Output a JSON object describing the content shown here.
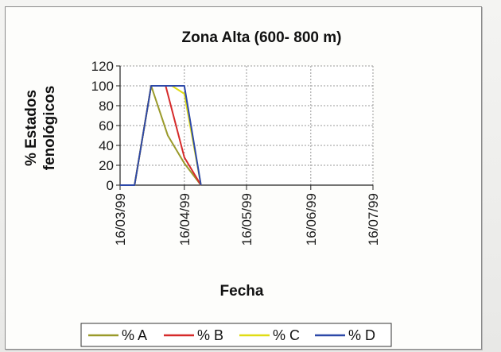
{
  "chart_data": {
    "type": "line",
    "title": "Zona  Alta (600- 800 m)",
    "xlabel": "Fecha",
    "ylabel": "% Estados fenológicos",
    "ylabel_lines": [
      "% Estados",
      "fenológicos"
    ],
    "ylim": [
      0,
      120
    ],
    "yticks": [
      "0",
      "20",
      "40",
      "60",
      "80",
      "100",
      "120"
    ],
    "xticks": [
      "16/03/99",
      "16/04/99",
      "16/05/99",
      "16/06/99",
      "16/07/99"
    ],
    "grid": true,
    "legend_position": "bottom",
    "series": [
      {
        "name": "% A",
        "color": "#9a9a2a",
        "x": [
          "16/03/99",
          "23/03/99",
          "31/03/99",
          "08/04/99",
          "16/04/99",
          "24/04/99"
        ],
        "values": [
          0,
          0,
          100,
          50,
          22,
          0
        ]
      },
      {
        "name": "% B",
        "color": "#d62a2a",
        "x": [
          "16/03/99",
          "23/03/99",
          "31/03/99",
          "07/04/99",
          "16/04/99",
          "24/04/99"
        ],
        "values": [
          0,
          0,
          100,
          100,
          28,
          0
        ]
      },
      {
        "name": "% C",
        "color": "#e0dc14",
        "x": [
          "16/03/99",
          "23/03/99",
          "31/03/99",
          "10/04/99",
          "16/04/99",
          "24/04/99"
        ],
        "values": [
          0,
          0,
          100,
          100,
          92,
          0
        ]
      },
      {
        "name": "% D",
        "color": "#2c48a8",
        "x": [
          "16/03/99",
          "23/03/99",
          "31/03/99",
          "16/04/99",
          "24/04/99"
        ],
        "values": [
          0,
          0,
          100,
          100,
          0
        ]
      }
    ],
    "x_range": [
      "16/03/99",
      "16/07/99"
    ]
  }
}
